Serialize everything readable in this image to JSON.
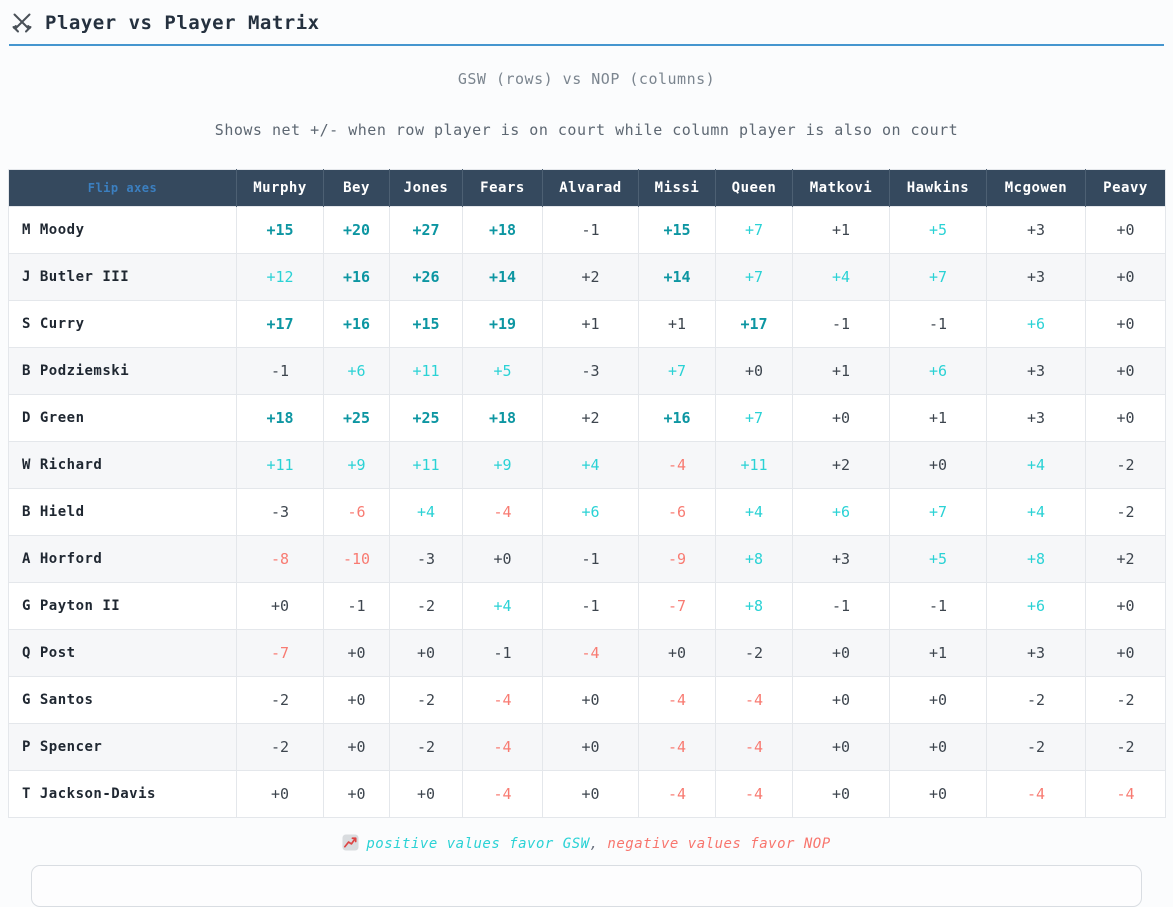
{
  "header": {
    "title": "Player vs Player Matrix",
    "icon": "crossed-swords"
  },
  "subtitles": {
    "matchup": "GSW (rows) vs NOP (columns)",
    "description": "Shows net +/- when row player is on court while column player is also on court"
  },
  "table": {
    "corner_label": "Flip axes",
    "columns": [
      "Murphy",
      "Bey",
      "Jones",
      "Fears",
      "Alvarad",
      "Missi",
      "Queen",
      "Matkovi",
      "Hawkins",
      "Mcgowen",
      "Peavy"
    ],
    "rows": [
      {
        "label": "M Moody",
        "values": [
          15,
          20,
          27,
          18,
          -1,
          15,
          7,
          1,
          5,
          3,
          0
        ]
      },
      {
        "label": "J Butler III",
        "values": [
          12,
          16,
          26,
          14,
          2,
          14,
          7,
          4,
          7,
          3,
          0
        ]
      },
      {
        "label": "S Curry",
        "values": [
          17,
          16,
          15,
          19,
          1,
          1,
          17,
          -1,
          -1,
          6,
          0
        ]
      },
      {
        "label": "B Podziemski",
        "values": [
          -1,
          6,
          11,
          5,
          -3,
          7,
          0,
          1,
          6,
          3,
          0
        ]
      },
      {
        "label": "D Green",
        "values": [
          18,
          25,
          25,
          18,
          2,
          16,
          7,
          0,
          1,
          3,
          0
        ]
      },
      {
        "label": "W Richard",
        "values": [
          11,
          9,
          11,
          9,
          4,
          -4,
          11,
          2,
          0,
          4,
          -2
        ]
      },
      {
        "label": "B Hield",
        "values": [
          -3,
          -6,
          4,
          -4,
          6,
          -6,
          4,
          6,
          7,
          4,
          -2
        ]
      },
      {
        "label": "A Horford",
        "values": [
          -8,
          -10,
          -3,
          0,
          -1,
          -9,
          8,
          3,
          5,
          8,
          2
        ]
      },
      {
        "label": "G Payton II",
        "values": [
          0,
          -1,
          -2,
          4,
          -1,
          -7,
          8,
          -1,
          -1,
          6,
          0
        ]
      },
      {
        "label": "Q Post",
        "values": [
          -7,
          0,
          0,
          -1,
          -4,
          0,
          -2,
          0,
          1,
          3,
          0
        ]
      },
      {
        "label": "G Santos",
        "values": [
          -2,
          0,
          -2,
          -4,
          0,
          -4,
          -4,
          0,
          0,
          -2,
          -2
        ]
      },
      {
        "label": "P Spencer",
        "values": [
          -2,
          0,
          -2,
          -4,
          0,
          -4,
          -4,
          0,
          0,
          -2,
          -2
        ]
      },
      {
        "label": "T Jackson-Davis",
        "values": [
          0,
          0,
          0,
          -4,
          0,
          -4,
          -4,
          0,
          0,
          -4,
          -4
        ]
      }
    ]
  },
  "legend": {
    "icon": "chart-increasing",
    "positive_text": "positive values favor GSW",
    "separator": ", ",
    "negative_text": "negative values favor NOP"
  },
  "colors": {
    "accent_blue": "#4596cf",
    "header_bg": "#35495e",
    "flip_axes_link": "#3b7fc0",
    "strong_positive": "#0d96a2",
    "light_positive": "#2ad2d5",
    "light_negative": "#f87b72",
    "strong_negative": "#e04f4f",
    "muted_value": "#3d454e",
    "row_stripe": "#f6f7f9"
  }
}
